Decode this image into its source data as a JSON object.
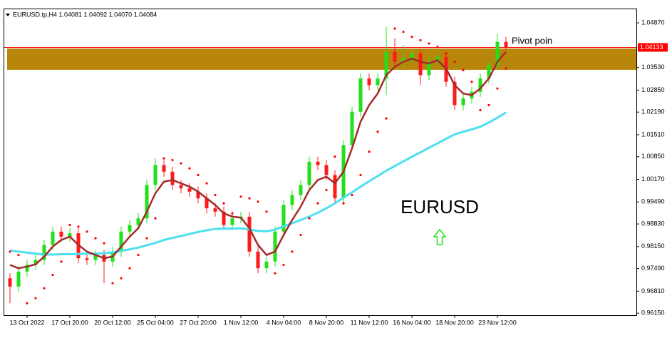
{
  "chart_data": {
    "type": "candlestick",
    "title": "EURUSD.tp,H4 1.04081 1.04092 1.04070 1.04084",
    "categories": [
      null,
      null,
      "13 Oct 2022",
      null,
      null,
      null,
      null,
      "17 Oct 20:00",
      null,
      null,
      null,
      null,
      "20 Oct 12:00",
      null,
      null,
      null,
      null,
      "25 Oct 04:00",
      null,
      null,
      null,
      null,
      "27 Oct 20:00",
      null,
      null,
      null,
      null,
      "1 Nov 12:00",
      null,
      null,
      null,
      null,
      "4 Nov 04:00",
      null,
      null,
      null,
      null,
      "8 Nov 20:00",
      null,
      null,
      null,
      null,
      "11 Nov 12:00",
      null,
      null,
      null,
      null,
      "16 Nov 04:00",
      null,
      null,
      null,
      null,
      "18 Nov 20:00",
      null,
      null,
      null,
      null,
      "23 Nov 12:00",
      null
    ],
    "open": [
      0.972,
      0.9695,
      0.974,
      0.976,
      0.9775,
      0.982,
      0.986,
      0.9845,
      0.9855,
      0.978,
      0.9775,
      0.979,
      0.977,
      0.98,
      0.986,
      0.988,
      0.99,
      1.0,
      1.006,
      1.004,
      1.0,
      0.999,
      0.998,
      0.996,
      0.993,
      0.992,
      0.988,
      0.99,
      0.9905,
      0.98,
      0.975,
      0.977,
      0.986,
      0.994,
      0.997,
      1.0,
      1.007,
      1.006,
      1.003,
      0.996,
      1.012,
      1.022,
      1.032,
      1.03,
      1.032,
      1.04,
      1.037,
      1.038,
      1.0395,
      1.033,
      1.037,
      1.0385,
      1.031,
      1.024,
      1.026,
      1.028,
      1.032,
      1.036,
      1.043
    ],
    "high": [
      0.9735,
      0.9755,
      0.9775,
      0.979,
      0.9835,
      0.9875,
      0.9875,
      0.987,
      0.987,
      0.9795,
      0.9805,
      0.9805,
      0.9815,
      0.9875,
      0.9895,
      0.9915,
      1.0015,
      1.008,
      1.0075,
      1.0055,
      1.0015,
      1.0005,
      0.9995,
      0.9975,
      0.9945,
      0.9935,
      0.9915,
      0.992,
      0.992,
      0.9815,
      0.9785,
      0.9875,
      0.9955,
      0.9985,
      1.0015,
      1.0085,
      1.0085,
      1.0075,
      1.0045,
      1.0135,
      1.0235,
      1.0335,
      1.0335,
      1.0335,
      1.0475,
      1.044,
      1.042,
      1.041,
      1.041,
      1.0385,
      1.04,
      1.04,
      1.0325,
      1.0275,
      1.0295,
      1.0335,
      1.0375,
      1.0455,
      1.0445
    ],
    "low": [
      0.9645,
      0.968,
      0.9725,
      0.9745,
      0.976,
      0.9805,
      0.983,
      0.983,
      0.9765,
      0.976,
      0.976,
      0.9705,
      0.9755,
      0.9785,
      0.9845,
      0.9865,
      0.9885,
      0.9985,
      1.0025,
      0.9985,
      0.9975,
      0.9965,
      0.9945,
      0.9915,
      0.9905,
      0.9865,
      0.9865,
      0.9885,
      0.9785,
      0.9735,
      0.9735,
      0.9755,
      0.9845,
      0.9925,
      0.9955,
      0.9985,
      1.0045,
      1.0015,
      0.9945,
      0.9945,
      1.0105,
      1.0205,
      1.0285,
      1.0285,
      1.027,
      1.0355,
      1.0355,
      1.0365,
      1.03,
      1.0315,
      1.0355,
      1.0295,
      1.0225,
      1.0225,
      1.0245,
      1.0265,
      1.0305,
      1.0345,
      1.0405
    ],
    "close": [
      0.9695,
      0.974,
      0.976,
      0.9775,
      0.982,
      0.986,
      0.9845,
      0.9855,
      0.978,
      0.9775,
      0.979,
      0.977,
      0.98,
      0.986,
      0.988,
      0.99,
      1.0,
      1.006,
      1.004,
      1.0,
      0.999,
      0.998,
      0.996,
      0.993,
      0.992,
      0.988,
      0.99,
      0.9905,
      0.98,
      0.975,
      0.977,
      0.986,
      0.994,
      0.997,
      1.0,
      1.007,
      1.006,
      1.003,
      0.996,
      1.012,
      1.022,
      1.032,
      1.03,
      1.032,
      1.04,
      1.037,
      1.038,
      1.0395,
      1.033,
      1.037,
      1.0385,
      1.031,
      1.024,
      1.026,
      1.028,
      1.032,
      1.036,
      1.043,
      1.0413
    ],
    "up_color": "#22e01a",
    "down_color": "#ff1a1a",
    "lines": [
      {
        "color": "#4ce0f0",
        "values": [
          0.9803,
          0.98,
          0.9797,
          0.9794,
          0.9791,
          0.9791,
          0.9792,
          0.9792,
          0.9793,
          0.9794,
          0.9794,
          0.9795,
          0.9798,
          0.9802,
          0.9807,
          0.9812,
          0.9819,
          0.9826,
          0.9835,
          0.9841,
          0.9847,
          0.9853,
          0.9859,
          0.9864,
          0.9868,
          0.9869,
          0.9869,
          0.987,
          0.9866,
          0.9862,
          0.9861,
          0.9866,
          0.9876,
          0.9885,
          0.9895,
          0.9905,
          0.9917,
          0.993,
          0.9945,
          0.9962,
          0.9978,
          0.9995,
          1.0011,
          1.0027,
          1.0043,
          1.0057,
          1.0071,
          1.0085,
          1.0098,
          1.0112,
          1.0125,
          1.0139,
          1.0152,
          1.016,
          1.0167,
          1.0175,
          1.0188,
          1.0202,
          1.0218
        ]
      },
      {
        "color": "#a52a2a",
        "values": [
          0.976,
          0.975,
          0.9755,
          0.9762,
          0.9785,
          0.9815,
          0.9835,
          0.9845,
          0.982,
          0.98,
          0.979,
          0.978,
          0.9785,
          0.9815,
          0.9845,
          0.987,
          0.992,
          0.9975,
          1.001,
          1.0015,
          1.0005,
          0.9995,
          0.998,
          0.996,
          0.994,
          0.9915,
          0.9905,
          0.9902,
          0.987,
          0.982,
          0.979,
          0.98,
          0.985,
          0.9895,
          0.9935,
          0.9985,
          1.0015,
          1.0025,
          1.0005,
          1.004,
          1.011,
          1.019,
          1.024,
          1.0275,
          1.033,
          1.0355,
          1.037,
          1.038,
          1.037,
          1.0365,
          1.0375,
          1.035,
          1.03,
          1.0275,
          1.027,
          1.029,
          1.032,
          1.037,
          1.04
        ]
      }
    ],
    "sar": {
      "color": "#ff0000",
      "values": [
        0.98,
        0.979,
        0.9645,
        0.966,
        0.969,
        0.973,
        0.977,
        0.988,
        0.9875,
        0.986,
        0.984,
        0.9825,
        0.9705,
        0.972,
        0.975,
        0.979,
        0.984,
        0.99,
        1.008,
        1.0075,
        1.0065,
        1.005,
        1.003,
        1.0005,
        0.997,
        0.9945,
        0.9915,
        0.9965,
        0.996,
        0.995,
        0.992,
        0.9735,
        0.976,
        0.98,
        0.985,
        0.99,
        0.9945,
        0.9985,
        1.0085,
        0.9945,
        0.997,
        1.003,
        1.01,
        1.016,
        1.02,
        1.047,
        1.046,
        1.0445,
        1.0435,
        1.0425,
        1.0415,
        1.0395,
        1.037,
        1.0345,
        1.031,
        1.0225,
        1.024,
        1.029,
        1.035
      ]
    },
    "zone": {
      "from": 1.0346,
      "to": 1.041,
      "color": "#b8860b"
    },
    "price_line": {
      "value": 1.04133,
      "color": "#ff0000"
    },
    "annotations": [
      "Pivot poin",
      "EURUSD"
    ],
    "ylim": [
      0.9609,
      1.053
    ],
    "yticks": [
      {
        "value": 1.0487,
        "label": "1.04870"
      },
      {
        "value": 1.0353,
        "label": "1.03530"
      },
      {
        "value": 1.0285,
        "label": "1.02850"
      },
      {
        "value": 1.0219,
        "label": "1.02190"
      },
      {
        "value": 1.0151,
        "label": "1.01510"
      },
      {
        "value": 1.0085,
        "label": "1.00850"
      },
      {
        "value": 1.0017,
        "label": "1.00170"
      },
      {
        "value": 0.9949,
        "label": "0.99490"
      },
      {
        "value": 0.9883,
        "label": "0.98830"
      },
      {
        "value": 0.9815,
        "label": "0.98150"
      },
      {
        "value": 0.9749,
        "label": "0.97490"
      },
      {
        "value": 0.9681,
        "label": "0.96810"
      },
      {
        "value": 0.9615,
        "label": "0.96150"
      }
    ]
  }
}
